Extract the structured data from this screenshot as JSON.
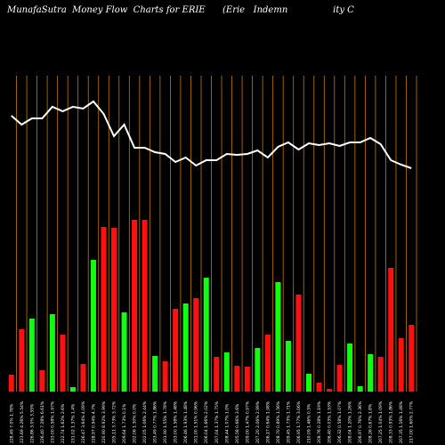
{
  "chart_data": {
    "type": "bar",
    "title": "MunafaSutra  Money Flow  Charts for ERIE",
    "subtitle": "(Erie   Indemn                ity C",
    "categories": [
      "228.49 7.0% 1.78%",
      "223.69 4.26% 5.54%",
      "226.86 3.0% 3.55%",
      "226.40 7.28% 6.61%",
      "233.00 0.58% 1.97%",
      "222.74 1.62% 2.6%",
      "231.02 1.37% 1.4%",
      "226.47 3.64% 4.09%",
      "228.97 0.94% 4.7%",
      "220.90 8.92% 3.99%",
      "205.11 3.73% 3.72%",
      "209.64 1.73% 0.1%",
      "202.06 1.30% 0.0%",
      "202.05 1.06% 2.44%",
      "203.49 0.77% 1.86%",
      "201.90 1.55% 1.78%",
      "203.00 1.58% 1.48%",
      "206.46 1.93% 1.48%",
      "201.00 1.51% 0.96%",
      "206.04 1.66% 2.02%",
      "207.04 1.37% 1.75%",
      "208.44 1.07% 1.0%",
      "205.58 0.66% 3.6%",
      "209.00 1.47% 0.97%",
      "207.20 2.06% 2.99%",
      "206.17 0.64% 1.98%",
      "208.70 0.89% 1.56%",
      "209.45 1.73% 1.71%",
      "206.95 1.77% 3.06%",
      "210.09 1.46% 0.5%",
      "208.76 0.28% 1.19%",
      "206.40 0.03% 1.53%",
      "206.32 0.58% 1.07%",
      "208.04 1.20% 1.26%",
      "206.97 0.76% 2.36%",
      "208.26 0.67% 1.8%",
      "207.25 1.04% 1.09%",
      "208.33 0.93% 1.86%",
      "207.35 1.16% 1.48%",
      "217.00 1.60% 2.77%"
    ],
    "series": [
      {
        "name": "Money Flow",
        "type": "bar",
        "values": [
          19,
          70,
          82,
          24,
          87,
          64,
          5,
          31,
          148,
          185,
          184,
          89,
          193,
          193,
          40,
          34,
          93,
          99,
          105,
          128,
          39,
          44,
          29,
          28,
          49,
          64,
          123,
          57,
          109,
          20,
          10,
          3,
          30,
          54,
          6,
          42,
          39,
          139,
          60,
          75
        ],
        "colors": [
          "#ff1010",
          "#ff1010",
          "#10ff10",
          "#ff1010",
          "#10ff10",
          "#ff1010",
          "#10ff10",
          "#ff1010",
          "#10ff10",
          "#ff1010",
          "#ff1010",
          "#10ff10",
          "#ff1010",
          "#ff1010",
          "#10ff10",
          "#ff1010",
          "#ff1010",
          "#10ff10",
          "#ff1010",
          "#10ff10",
          "#ff1010",
          "#10ff10",
          "#ff1010",
          "#ff1010",
          "#10ff10",
          "#ff1010",
          "#10ff10",
          "#10ff10",
          "#ff1010",
          "#10ff10",
          "#ff1010",
          "#ff1010",
          "#ff1010",
          "#10ff10",
          "#10ff10",
          "#10ff10",
          "#ff1010",
          "#ff1010",
          "#ff1010",
          "#ff1010"
        ]
      },
      {
        "name": "Price",
        "type": "line",
        "color": "#ffffff",
        "values": [
          310,
          300,
          307,
          307,
          320,
          315,
          320,
          318,
          326,
          312,
          287,
          300,
          274,
          274,
          269,
          267,
          258,
          263,
          254,
          260,
          260,
          267,
          266,
          267,
          271,
          263,
          275,
          280,
          272,
          279,
          277,
          279,
          276,
          280,
          280,
          285,
          278,
          260,
          255,
          251
        ]
      }
    ],
    "ylim": [
      0,
      360
    ],
    "grid_color": "#c87800",
    "background": "#000000"
  }
}
